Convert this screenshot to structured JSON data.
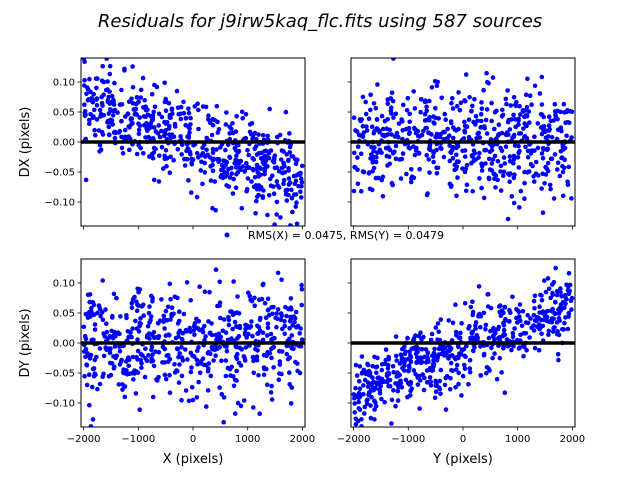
{
  "figure": {
    "title": "Residuals for j9irw5kaq_flc.fits using 587 sources",
    "legend": "RMS(X) = 0.0475, RMS(Y) = 0.0479",
    "marker_color": "#0000ff",
    "zero_line_color": "#000000"
  },
  "chart_data": [
    {
      "type": "scatter",
      "panel": "top-left",
      "xlabel": "",
      "ylabel": "DX (pixels)",
      "xlim": [
        -2048,
        2048
      ],
      "ylim": [
        -0.14,
        0.14
      ],
      "xticks": [
        -2000,
        -1000,
        0,
        1000,
        2000
      ],
      "yticks": [
        -0.1,
        -0.05,
        0.0,
        0.05,
        0.1
      ],
      "ytick_labels": [
        "−0.10",
        "−0.05",
        "0.00",
        "0.05",
        "0.10"
      ],
      "show_xticklabels": false,
      "trend": "decreasing: DX ≈ +0.06 at X=-2000 to −0.06 at X=+2000",
      "points": []
    },
    {
      "type": "scatter",
      "panel": "top-right",
      "xlabel": "",
      "ylabel": "",
      "xlim": [
        -2048,
        2048
      ],
      "ylim": [
        -0.14,
        0.14
      ],
      "xticks": [
        -2000,
        -1000,
        0,
        1000,
        2000
      ],
      "show_xticklabels": false,
      "show_yticklabels": false,
      "trend": "flat around 0, spread ±0.12",
      "points": []
    },
    {
      "type": "scatter",
      "panel": "bottom-left",
      "xlabel": "X (pixels)",
      "ylabel": "DY (pixels)",
      "xlim": [
        -2048,
        2048
      ],
      "ylim": [
        -0.14,
        0.14
      ],
      "xticks": [
        -2000,
        -1000,
        0,
        1000,
        2000
      ],
      "xtick_labels": [
        "−2000",
        "−1000",
        "0",
        "1000",
        "2000"
      ],
      "yticks": [
        -0.1,
        -0.05,
        0.0,
        0.05,
        0.1
      ],
      "ytick_labels": [
        "−0.10",
        "−0.05",
        "0.00",
        "0.05",
        "0.10"
      ],
      "trend": "flat around 0, spread ±0.12",
      "points": []
    },
    {
      "type": "scatter",
      "panel": "bottom-right",
      "xlabel": "Y (pixels)",
      "ylabel": "",
      "xlim": [
        -2048,
        2048
      ],
      "ylim": [
        -0.14,
        0.14
      ],
      "xticks": [
        -2000,
        -1000,
        0,
        1000,
        2000
      ],
      "xtick_labels": [
        "−2000",
        "−1000",
        "0",
        "1000",
        "2000"
      ],
      "show_yticklabels": false,
      "trend": "increasing: DY ≈ −0.06 at Y=-2000 to +0.09 at Y=+2000",
      "points": []
    }
  ]
}
